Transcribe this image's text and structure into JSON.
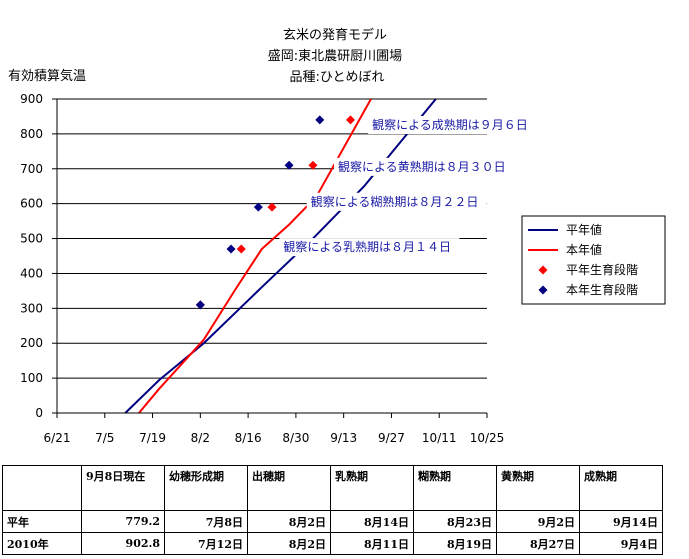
{
  "chart_data": {
    "type": "line",
    "title_lines": [
      "玄米の発育モデル",
      "盛岡:東北農研厨川圃場",
      "品種:ひとめぼれ"
    ],
    "ylabel": "有効積算気温",
    "ylim": [
      0,
      900
    ],
    "y_ticks": [
      "0",
      "100",
      "200",
      "300",
      "400",
      "500",
      "600",
      "700",
      "800",
      "900"
    ],
    "x_ticks": [
      "6/21",
      "7/5",
      "7/19",
      "8/2",
      "8/16",
      "8/30",
      "9/13",
      "9/27",
      "10/11",
      "10/25"
    ],
    "grid": "horizontal",
    "legend_position": "right",
    "series": [
      {
        "name": "平年値",
        "color": "#000080",
        "x": [
          20,
          30,
          43,
          61,
          75,
          90,
          111
        ],
        "y": [
          0,
          95,
          200,
          370,
          500,
          650,
          900
        ]
      },
      {
        "name": "本年値",
        "color": "#ff0000",
        "x": [
          24,
          30,
          43,
          52,
          60,
          68,
          76,
          92
        ],
        "y": [
          0,
          70,
          210,
          350,
          470,
          540,
          620,
          900
        ]
      }
    ],
    "points": [
      {
        "name": "平年生育段階",
        "color": "#ff0000",
        "marker": "diamond",
        "x": [
          42,
          54,
          63,
          75,
          86
        ],
        "y": [
          310,
          470,
          590,
          710,
          840
        ]
      },
      {
        "name": "本年生育段階",
        "color": "#000080",
        "marker": "diamond",
        "x": [
          42,
          51,
          59,
          68,
          77
        ],
        "y": [
          310,
          470,
          590,
          710,
          840
        ]
      }
    ],
    "annotations": [
      {
        "text": "観察による成熟期は９月６日",
        "x": 90,
        "y": 814
      },
      {
        "text": "観察による黄熟期は８月３０日",
        "x": 80,
        "y": 694
      },
      {
        "text": "観察による糊熟期は８月２２日",
        "x": 72,
        "y": 594
      },
      {
        "text": "観察による乳熟期は８月１４日",
        "x": 64,
        "y": 464
      }
    ]
  },
  "table": {
    "headers": [
      "",
      "9月8日現在",
      "幼穂形成期",
      "出穂期",
      "乳熟期",
      "糊熟期",
      "黄熟期",
      "成熟期"
    ],
    "rows": [
      [
        "平年",
        "779.2",
        "7月8日",
        "8月2日",
        "8月14日",
        "8月23日",
        "9月2日",
        "9月14日"
      ],
      [
        "2010年",
        "902.8",
        "7月12日",
        "8月2日",
        "8月11日",
        "8月19日",
        "8月27日",
        "9月4日"
      ]
    ]
  }
}
